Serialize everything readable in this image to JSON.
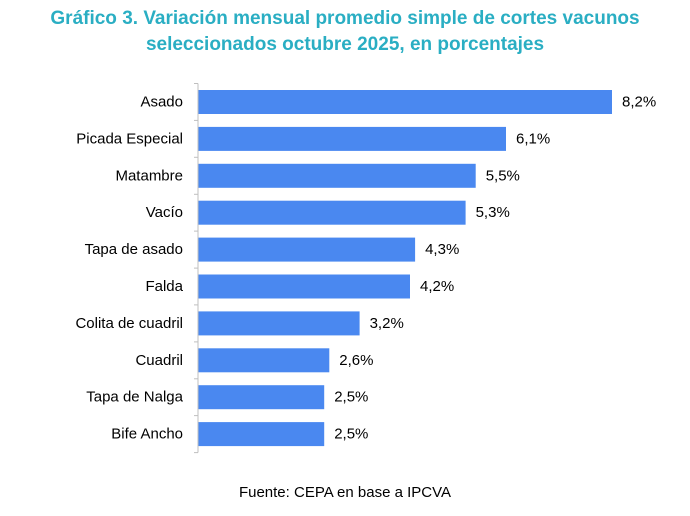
{
  "title_line1": "Gráfico 3. Variación mensual promedio simple de cortes vacunos",
  "title_line2": "seleccionados octubre 2025, en porcentajes",
  "source": "Fuente: CEPA en base a IPCVA",
  "colors": {
    "title": "#2aaec3",
    "bar": "#4a88f0",
    "axis": "#bfbfbf",
    "text": "#000000"
  },
  "chart_data": {
    "type": "bar",
    "orientation": "horizontal",
    "categories": [
      "Asado",
      "Picada Especial",
      "Matambre",
      "Vacío",
      "Tapa de asado",
      "Falda",
      "Colita de cuadril",
      "Cuadril",
      "Tapa de Nalga",
      "Bife Ancho"
    ],
    "values": [
      8.2,
      6.1,
      5.5,
      5.3,
      4.3,
      4.2,
      3.2,
      2.6,
      2.5,
      2.5
    ],
    "value_labels": [
      "8,2%",
      "6,1%",
      "5,5%",
      "5,3%",
      "4,3%",
      "4,2%",
      "3,2%",
      "2,6%",
      "2,5%",
      "2,5%"
    ],
    "unit": "%",
    "xlim": [
      0,
      8.2
    ],
    "grid": false,
    "legend": "none"
  }
}
